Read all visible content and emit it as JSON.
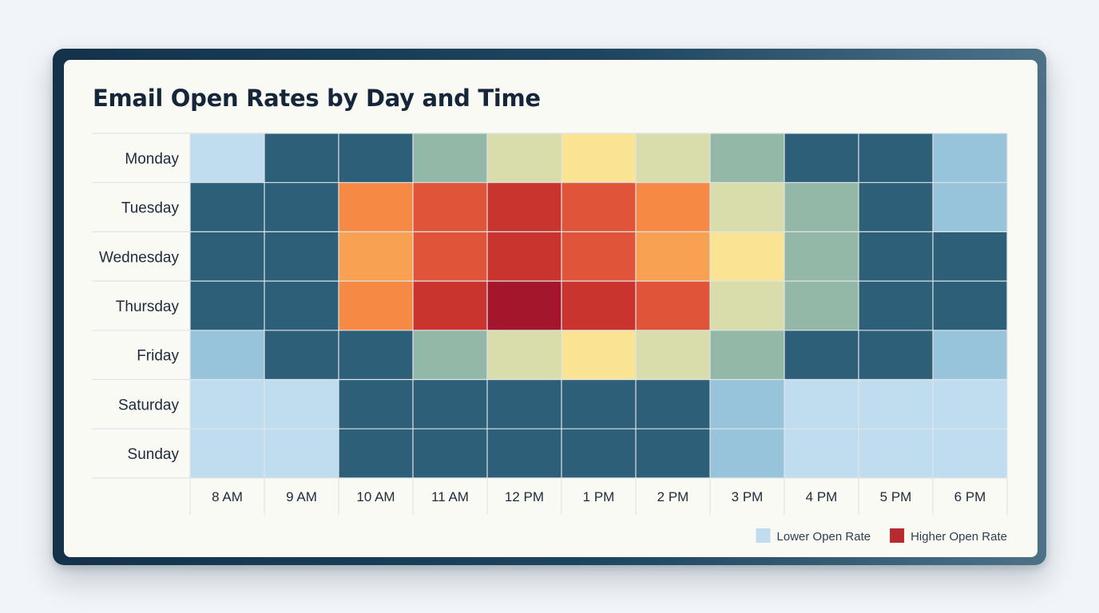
{
  "chart_data": {
    "type": "heatmap",
    "title": "Email Open Rates by Day and Time",
    "rows": [
      "Monday",
      "Tuesday",
      "Wednesday",
      "Thursday",
      "Friday",
      "Saturday",
      "Sunday"
    ],
    "columns": [
      "8 AM",
      "9 AM",
      "10 AM",
      "11 AM",
      "12 PM",
      "1 PM",
      "2 PM",
      "3 PM",
      "4 PM",
      "5 PM",
      "6 PM"
    ],
    "values": [
      [
        1,
        2,
        2,
        4,
        5,
        6,
        5,
        4,
        2,
        2,
        3
      ],
      [
        2,
        2,
        8,
        9,
        10,
        9,
        8,
        5,
        4,
        2,
        3
      ],
      [
        2,
        2,
        7,
        9,
        10,
        9,
        7,
        6,
        4,
        2,
        2
      ],
      [
        2,
        2,
        8,
        10,
        11,
        10,
        9,
        5,
        4,
        2,
        2
      ],
      [
        3,
        2,
        2,
        4,
        5,
        6,
        5,
        4,
        2,
        2,
        3
      ],
      [
        1,
        1,
        2,
        2,
        2,
        2,
        2,
        3,
        1,
        1,
        1
      ],
      [
        1,
        1,
        2,
        2,
        2,
        2,
        2,
        3,
        1,
        1,
        1
      ]
    ],
    "color_scale": {
      "0": "#ffffff",
      "1": "#bfddef",
      "2": "#2d5f78",
      "3": "#97c3db",
      "4": "#93b8a7",
      "5": "#d9dcab",
      "6": "#fbe394",
      "7": "#f9a153",
      "8": "#f68a45",
      "9": "#e0553a",
      "10": "#c9352e",
      "11": "#a3162b"
    },
    "legend": [
      {
        "label": "Lower Open Rate",
        "color": "#bfddef"
      },
      {
        "label": "Higher Open Rate",
        "color": "#b72b30"
      }
    ],
    "legend_position": "bottom-right",
    "grid": true
  }
}
